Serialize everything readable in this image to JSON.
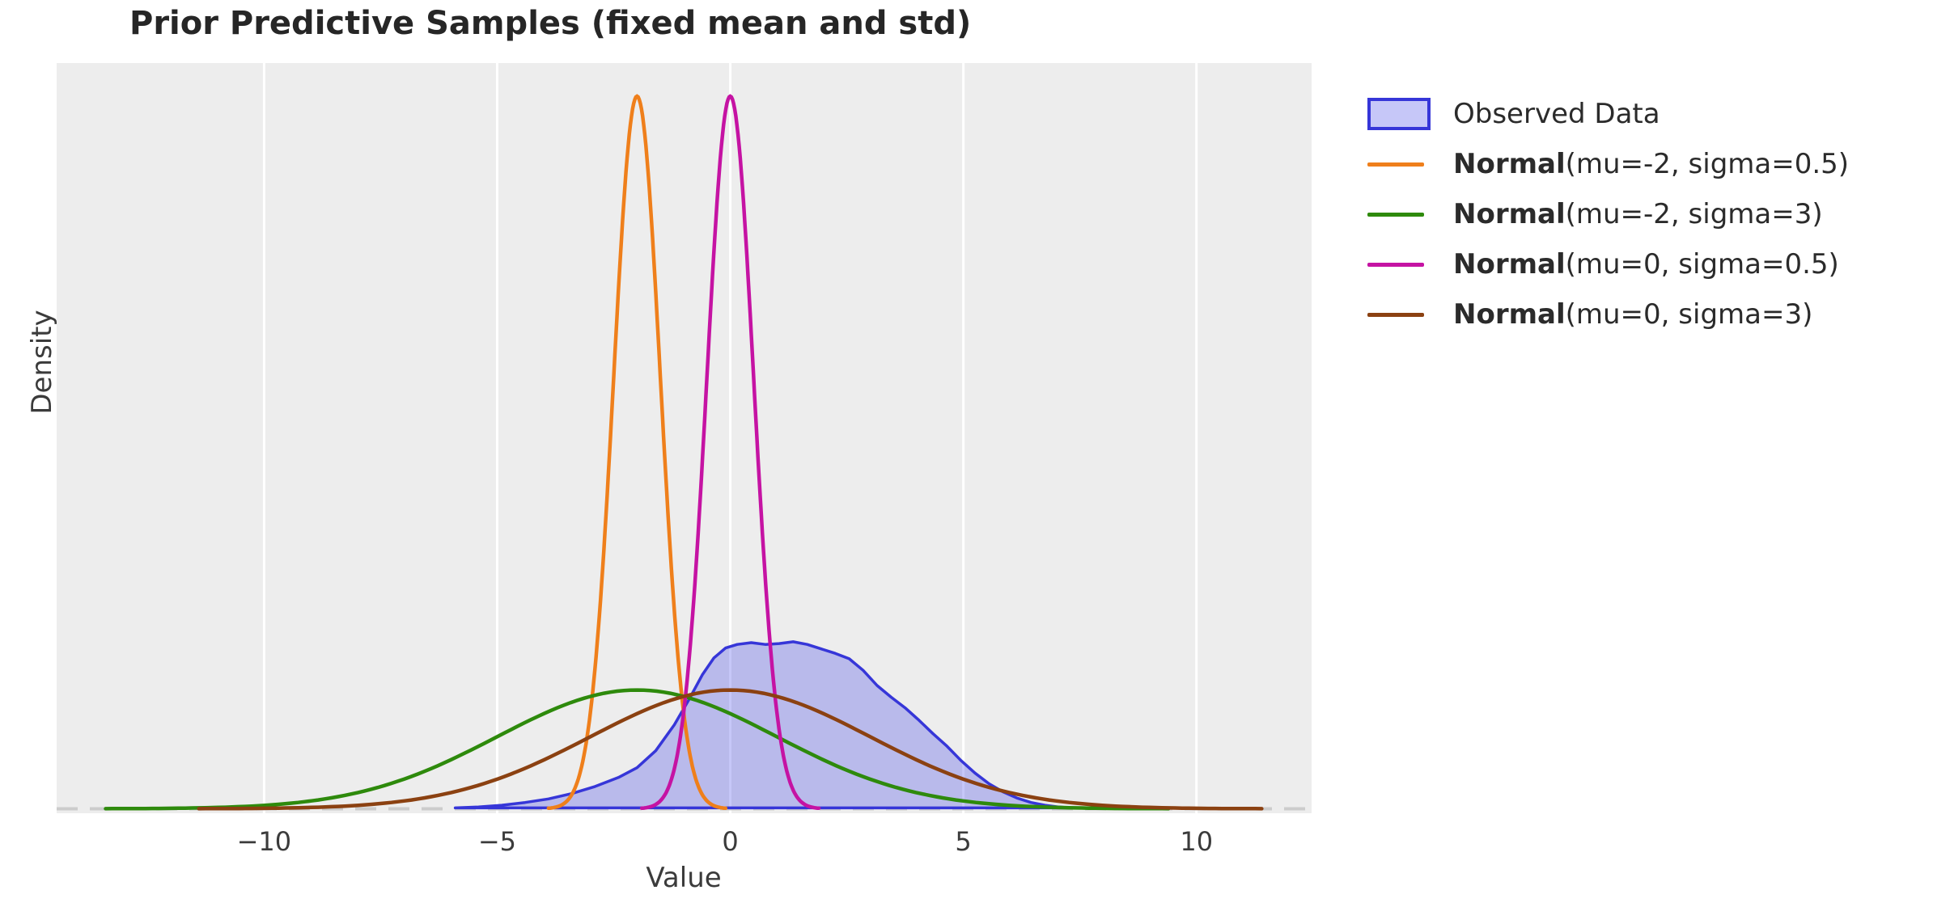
{
  "page": {
    "background": "#ffffff"
  },
  "chart_data": {
    "type": "line",
    "subtype": "density-curves-with-filled-kde",
    "title": "Prior Predictive Samples (fixed mean and std)",
    "xlabel": "Value",
    "ylabel": "Density",
    "xlim": [
      -14.45,
      12.47
    ],
    "ylim": [
      -0.005,
      0.835
    ],
    "xticks": [
      {
        "value": -10,
        "label": "−10"
      },
      {
        "value": -5,
        "label": "−5"
      },
      {
        "value": 0,
        "label": "0"
      },
      {
        "value": 5,
        "label": "5"
      },
      {
        "value": 10,
        "label": "10"
      }
    ],
    "yticks": [],
    "plot_background": "#ededed",
    "grid": {
      "vertical": true,
      "horizontal": false,
      "color": "#ffffff"
    },
    "zero_line": {
      "y": 0,
      "style": "dashed",
      "color": "#cccccc"
    },
    "legend_position": "outside-top-right",
    "legend": {
      "items": [
        {
          "bold": "",
          "rest": "Observed Data",
          "swatch": "patch",
          "fill": "rgba(50,55,230,0.28)",
          "edge": "#3636d8"
        },
        {
          "bold": "Normal",
          "rest": "(mu=-2, sigma=0.5)",
          "swatch": "line",
          "color": "#ef7f1b"
        },
        {
          "bold": "Normal",
          "rest": "(mu=-2, sigma=3)",
          "swatch": "line",
          "color": "#2e8a0c"
        },
        {
          "bold": "Normal",
          "rest": "(mu=0, sigma=0.5)",
          "swatch": "line",
          "color": "#c513a3"
        },
        {
          "bold": "Normal",
          "rest": "(mu=0, sigma=3)",
          "swatch": "line",
          "color": "#8b4111"
        }
      ]
    },
    "series": [
      {
        "name": "Observed Data",
        "type": "kde-filled",
        "fill": "rgba(50,55,230,0.28)",
        "edge": "#3636d8",
        "peak_density": 0.187,
        "points": [
          [
            -5.9,
            0.001
          ],
          [
            -5.4,
            0.002
          ],
          [
            -4.9,
            0.004
          ],
          [
            -4.4,
            0.007
          ],
          [
            -3.9,
            0.011
          ],
          [
            -3.4,
            0.017
          ],
          [
            -2.9,
            0.025
          ],
          [
            -2.4,
            0.035
          ],
          [
            -2.0,
            0.046
          ],
          [
            -1.6,
            0.065
          ],
          [
            -1.2,
            0.094
          ],
          [
            -0.9,
            0.121
          ],
          [
            -0.6,
            0.15
          ],
          [
            -0.35,
            0.169
          ],
          [
            -0.1,
            0.18
          ],
          [
            0.15,
            0.184
          ],
          [
            0.45,
            0.186
          ],
          [
            0.75,
            0.184
          ],
          [
            1.05,
            0.185
          ],
          [
            1.35,
            0.187
          ],
          [
            1.65,
            0.184
          ],
          [
            1.95,
            0.179
          ],
          [
            2.25,
            0.174
          ],
          [
            2.55,
            0.168
          ],
          [
            2.85,
            0.155
          ],
          [
            3.15,
            0.138
          ],
          [
            3.45,
            0.125
          ],
          [
            3.75,
            0.113
          ],
          [
            4.05,
            0.099
          ],
          [
            4.35,
            0.084
          ],
          [
            4.65,
            0.07
          ],
          [
            4.95,
            0.054
          ],
          [
            5.25,
            0.04
          ],
          [
            5.55,
            0.028
          ],
          [
            5.85,
            0.019
          ],
          [
            6.15,
            0.012
          ],
          [
            6.45,
            0.007
          ],
          [
            6.75,
            0.004
          ],
          [
            7.05,
            0.002
          ],
          [
            7.3,
            0.001
          ]
        ]
      },
      {
        "name": "Normal(mu=-2, sigma=0.5)",
        "type": "normal-pdf",
        "mu": -2,
        "sigma": 0.5,
        "color": "#ef7f1b",
        "x_range": [
          -3.9,
          -0.1
        ]
      },
      {
        "name": "Normal(mu=-2, sigma=3)",
        "type": "normal-pdf",
        "mu": -2,
        "sigma": 3,
        "color": "#2e8a0c",
        "x_range": [
          -13.4,
          9.4
        ]
      },
      {
        "name": "Normal(mu=0, sigma=0.5)",
        "type": "normal-pdf",
        "mu": 0,
        "sigma": 0.5,
        "color": "#c513a3",
        "x_range": [
          -1.9,
          1.9
        ]
      },
      {
        "name": "Normal(mu=0, sigma=3)",
        "type": "normal-pdf",
        "mu": 0,
        "sigma": 3,
        "color": "#8b4111",
        "x_range": [
          -11.4,
          11.4
        ]
      }
    ],
    "style": {
      "curve_stroke_width": 4.5,
      "kde_stroke_width": 3.5,
      "gridline_width": 3,
      "zero_line_width": 4,
      "zero_line_dash": "26 15"
    }
  }
}
